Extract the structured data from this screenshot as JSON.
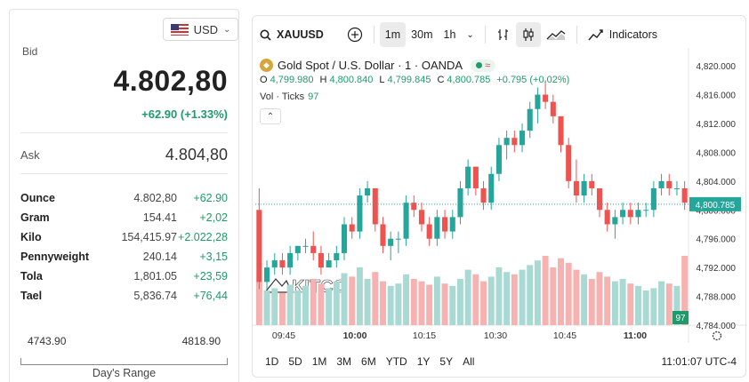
{
  "currency": {
    "code": "USD",
    "flag": "us-flag-icon"
  },
  "quote": {
    "bid_label": "Bid",
    "bid_value": "4.802,80",
    "bid_change": "+62.90 (+1.33%)",
    "ask_label": "Ask",
    "ask_value": "4.804,80"
  },
  "units": [
    {
      "name": "Ounce",
      "price": "4.802,80",
      "change": "+62.90"
    },
    {
      "name": "Gram",
      "price": "154.41",
      "change": "+2,02"
    },
    {
      "name": "Kilo",
      "price": "154,415.97",
      "change": "+2.022,28"
    },
    {
      "name": "Pennyweight",
      "price": "240.14",
      "change": "+3,15"
    },
    {
      "name": "Tola",
      "price": "1,801.05",
      "change": "+23,59"
    },
    {
      "name": "Tael",
      "price": "5,836.74",
      "change": "+76,44"
    }
  ],
  "range": {
    "low": "4743.90",
    "high": "4818.90",
    "label": "Day's Range"
  },
  "toolbar": {
    "symbol": "XAUUSD",
    "intervals": [
      "1m",
      "30m",
      "1h"
    ],
    "active_interval": "1m",
    "indicators": "Indicators"
  },
  "legend": {
    "title": "Gold Spot / U.S. Dollar · 1 · OANDA",
    "open_label": "O",
    "open": "4,799.980",
    "high_label": "H",
    "high": "4,800.840",
    "low_label": "L",
    "low": "4,799.845",
    "close_label": "C",
    "close": "4,800.785",
    "change": "+0.795 (+0.02%)",
    "vol_label": "Vol · Ticks",
    "vol_value": "97"
  },
  "watermark": "KITCO",
  "timeframes": [
    "1D",
    "5D",
    "1M",
    "3M",
    "6M",
    "YTD",
    "1Y",
    "5Y",
    "All"
  ],
  "clock": "11:01:07 UTC-4",
  "colors": {
    "up": "#26a69a",
    "down": "#ef5350",
    "vol_up": "#a8d9d2",
    "vol_down": "#f5b2b0",
    "accent": "#1f9a6b"
  },
  "chart_data": {
    "type": "candlestick",
    "x_ticks": [
      "09:45",
      "10:00",
      "10:15",
      "10:30",
      "10:45",
      "11:00"
    ],
    "y_ticks": [
      "4,820.000",
      "4,816.000",
      "4,812.000",
      "4,808.000",
      "4,804.000",
      "4,800.000",
      "4,796.000",
      "4,792.000",
      "4,788.000",
      "4,784.000"
    ],
    "ylim": [
      4784,
      4821
    ],
    "last_price": "4,800.785",
    "last_volume": "97",
    "candles": [
      [
        4800,
        4803,
        4789,
        4790
      ],
      [
        4790,
        4793,
        4789,
        4792
      ],
      [
        4792,
        4794,
        4791,
        4793
      ],
      [
        4793,
        4794,
        4791,
        4792
      ],
      [
        4792,
        4795,
        4791,
        4794
      ],
      [
        4794,
        4795,
        4793,
        4795
      ],
      [
        4795,
        4796,
        4794,
        4795
      ],
      [
        4795,
        4797,
        4793,
        4794
      ],
      [
        4794,
        4795,
        4791,
        4792
      ],
      [
        4792,
        4794,
        4792,
        4793
      ],
      [
        4793,
        4795,
        4792,
        4794
      ],
      [
        4794,
        4799,
        4793,
        4798
      ],
      [
        4798,
        4799,
        4796,
        4797
      ],
      [
        4797,
        4803,
        4796,
        4802
      ],
      [
        4802,
        4804,
        4801,
        4803
      ],
      [
        4803,
        4803,
        4797,
        4798
      ],
      [
        4798,
        4799,
        4794,
        4795
      ],
      [
        4795,
        4797,
        4793,
        4796
      ],
      [
        4796,
        4797,
        4794,
        4796
      ],
      [
        4796,
        4802,
        4795,
        4801
      ],
      [
        4801,
        4802,
        4799,
        4800
      ],
      [
        4800,
        4801,
        4797,
        4798
      ],
      [
        4798,
        4799,
        4795,
        4796
      ],
      [
        4796,
        4800,
        4795,
        4799
      ],
      [
        4799,
        4800,
        4796,
        4797
      ],
      [
        4797,
        4800,
        4796,
        4799
      ],
      [
        4799,
        4804,
        4798,
        4803
      ],
      [
        4803,
        4807,
        4802,
        4806
      ],
      [
        4806,
        4806,
        4802,
        4803
      ],
      [
        4803,
        4804,
        4800,
        4801
      ],
      [
        4801,
        4806,
        4800,
        4805
      ],
      [
        4805,
        4810,
        4804,
        4809
      ],
      [
        4809,
        4811,
        4807,
        4810
      ],
      [
        4810,
        4811,
        4808,
        4809
      ],
      [
        4809,
        4812,
        4808,
        4811
      ],
      [
        4811,
        4815,
        4810,
        4814
      ],
      [
        4814,
        4817,
        4812,
        4816
      ],
      [
        4816,
        4818,
        4814,
        4815
      ],
      [
        4815,
        4816,
        4812,
        4813
      ],
      [
        4813,
        4813,
        4808,
        4809
      ],
      [
        4809,
        4810,
        4803,
        4804
      ],
      [
        4804,
        4807,
        4801,
        4802
      ],
      [
        4802,
        4805,
        4801,
        4804
      ],
      [
        4804,
        4805,
        4802,
        4803
      ],
      [
        4803,
        4803,
        4799,
        4800
      ],
      [
        4800,
        4801,
        4797,
        4798
      ],
      [
        4798,
        4800,
        4796,
        4799
      ],
      [
        4799,
        4801,
        4798,
        4800
      ],
      [
        4800,
        4801,
        4798,
        4799
      ],
      [
        4799,
        4801,
        4798,
        4800
      ],
      [
        4800,
        4801,
        4799,
        4800
      ],
      [
        4800,
        4804,
        4799,
        4803
      ],
      [
        4803,
        4805,
        4802,
        4804
      ],
      [
        4804,
        4805,
        4802,
        4803
      ],
      [
        4803,
        4804,
        4802,
        4803
      ],
      [
        4803,
        4804,
        4800,
        4801
      ]
    ],
    "volumes": [
      38,
      30,
      32,
      28,
      35,
      30,
      34,
      40,
      36,
      32,
      38,
      45,
      42,
      50,
      40,
      46,
      38,
      34,
      36,
      44,
      40,
      38,
      35,
      42,
      36,
      34,
      40,
      48,
      44,
      38,
      42,
      50,
      46,
      44,
      48,
      52,
      56,
      60,
      50,
      58,
      54,
      48,
      44,
      40,
      46,
      42,
      38,
      40,
      36,
      34,
      30,
      32,
      38,
      36,
      34,
      97
    ]
  }
}
